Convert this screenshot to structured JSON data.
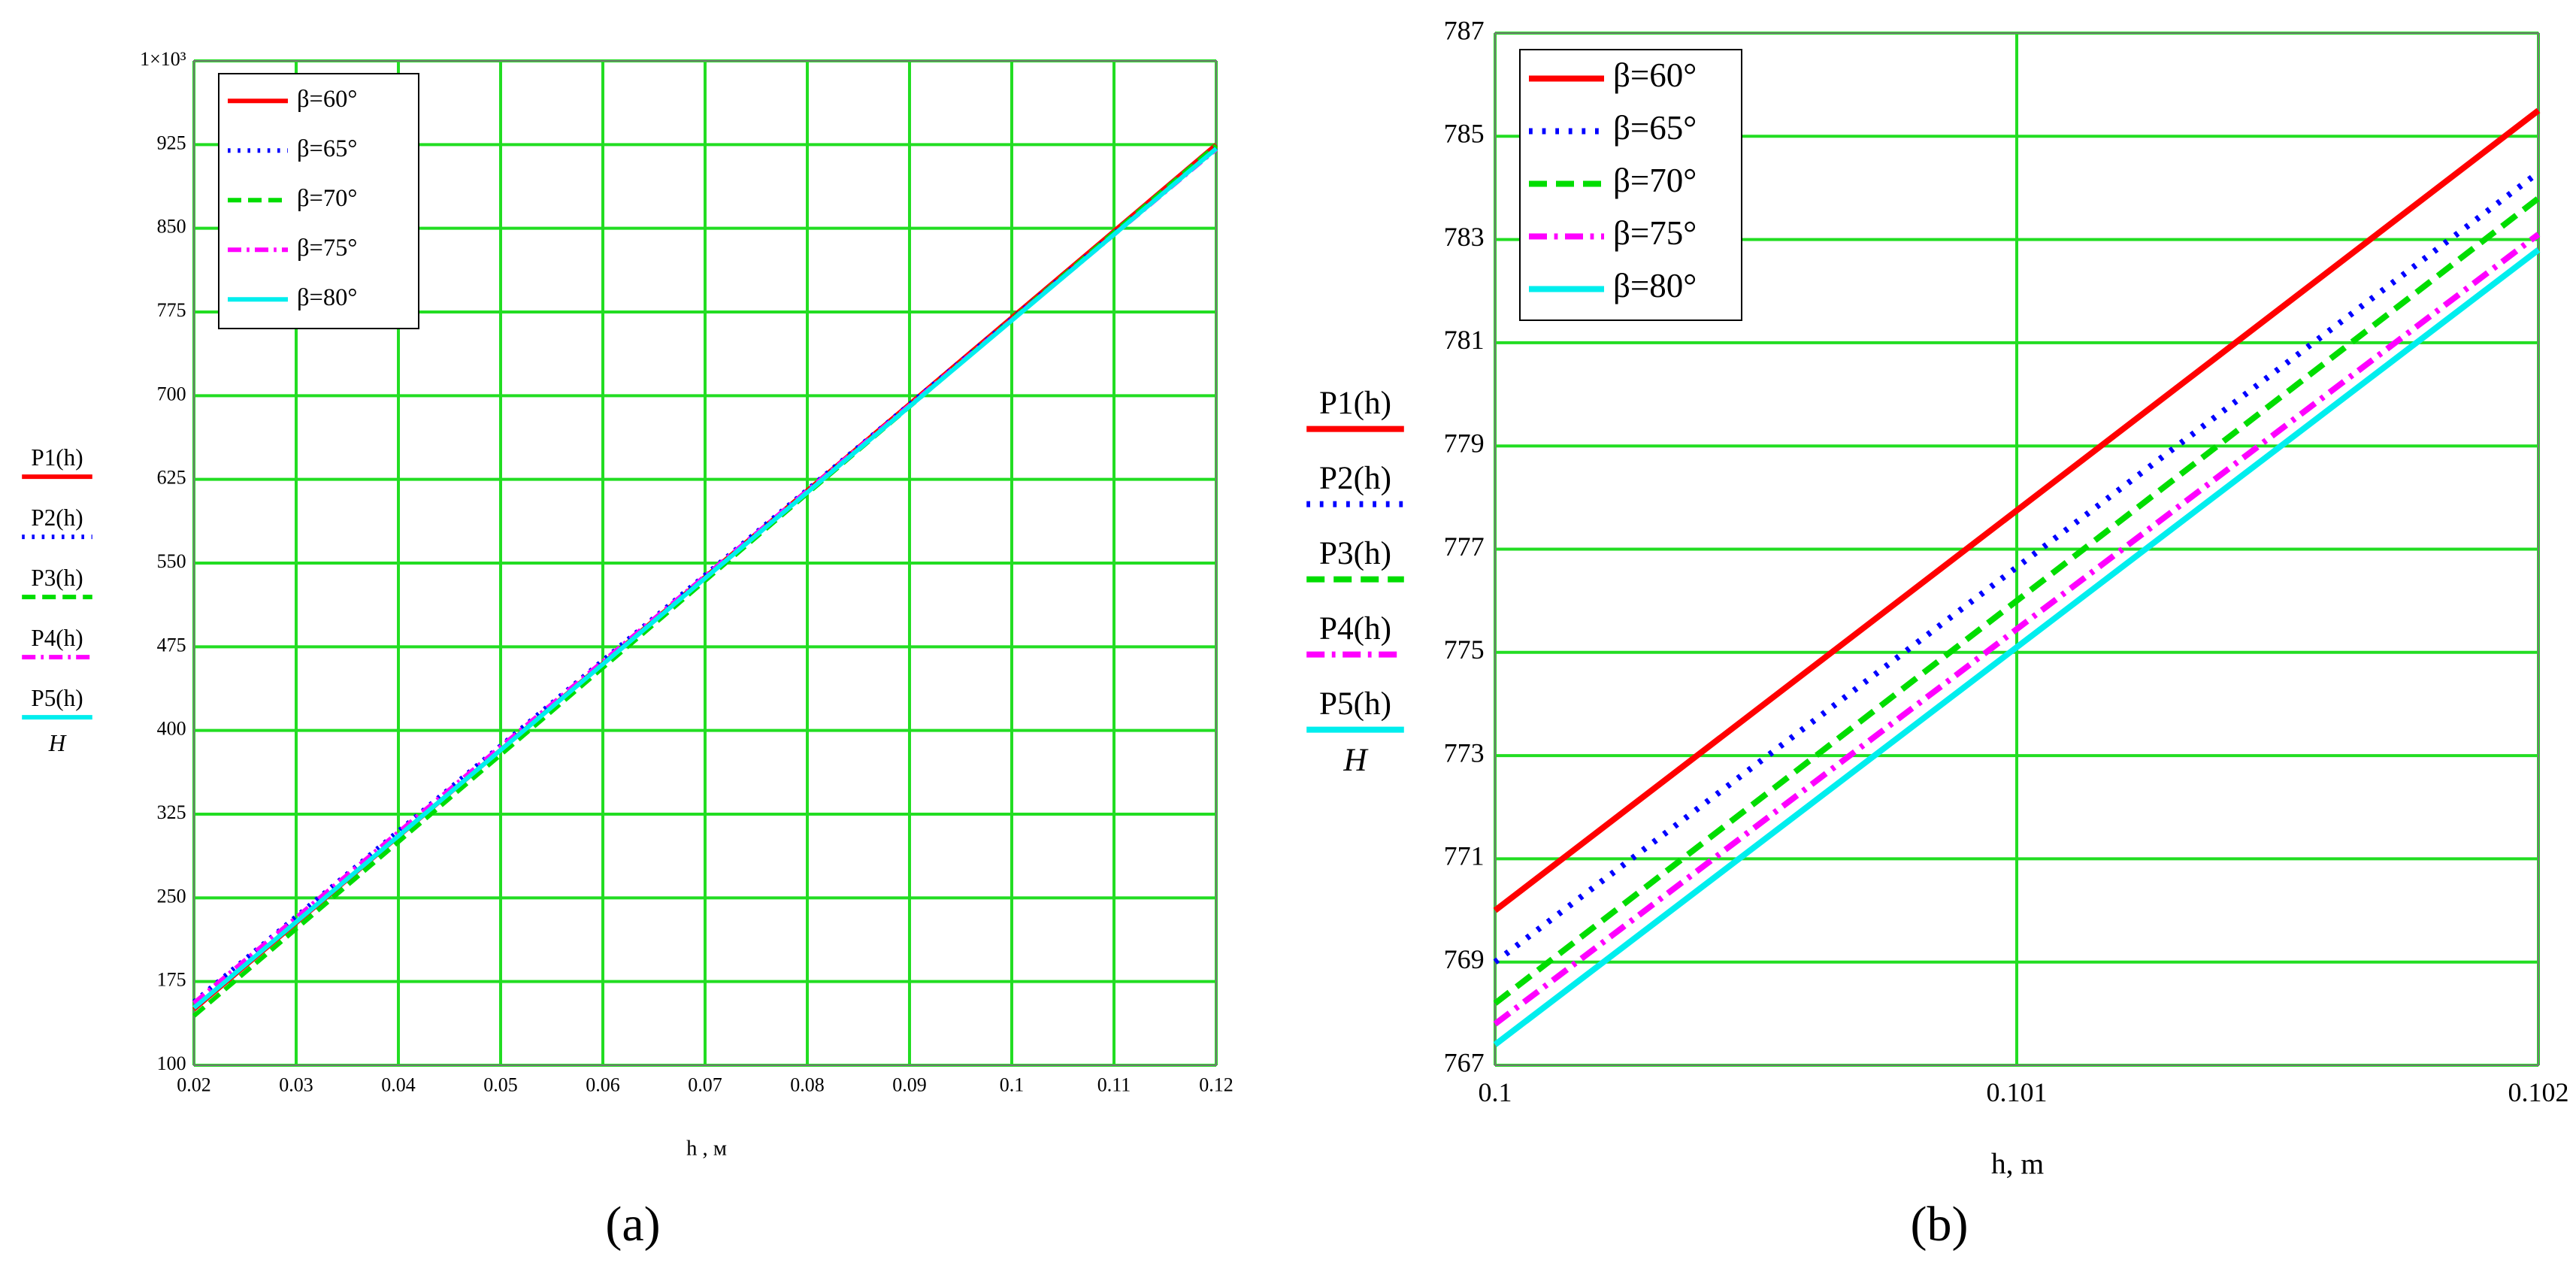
{
  "chart_data": [
    {
      "type": "line",
      "caption": "(a)",
      "xlabel": "h , м",
      "ylabel": "H",
      "xlim": [
        0.02,
        0.12
      ],
      "xticks": [
        0.02,
        0.03,
        0.04,
        0.05,
        0.06,
        0.07,
        0.08,
        0.09,
        0.1,
        0.11,
        0.12
      ],
      "ylim": [
        100,
        1000
      ],
      "yticks": [
        100,
        175,
        250,
        325,
        400,
        475,
        550,
        625,
        700,
        775,
        850,
        925,
        {
          "value": 1000,
          "label": "1×10³"
        }
      ],
      "grid": true,
      "grid_color": "#22dd22",
      "legend": "upper left",
      "x": [
        0.02,
        0.12
      ],
      "series": [
        {
          "name": "β=60°",
          "trace": "P1(h)",
          "color": "#ff0000",
          "style": "solid",
          "values": [
            150,
            925
          ]
        },
        {
          "name": "β=65°",
          "trace": "P2(h)",
          "color": "#0000ff",
          "style": "dotted",
          "values": [
            157,
            922
          ]
        },
        {
          "name": "β=70°",
          "trace": "P3(h)",
          "color": "#00dd00",
          "style": "dashed",
          "values": [
            144.2,
            924.2
          ]
        },
        {
          "name": "β=75°",
          "trace": "P4(h)",
          "color": "#ff00ff",
          "style": "dashdot",
          "values": [
            155.8,
            920.8
          ]
        },
        {
          "name": "β=80°",
          "trace": "P5(h)",
          "color": "#00eeee",
          "style": "solid",
          "values": [
            151.4,
            921.4
          ]
        }
      ]
    },
    {
      "type": "line",
      "caption": "(b)",
      "xlabel": "h, m",
      "ylabel": "H",
      "xlim": [
        0.1,
        0.102
      ],
      "xticks": [
        0.1,
        0.101,
        0.102
      ],
      "ylim": [
        767,
        787
      ],
      "yticks": [
        767,
        769,
        771,
        773,
        775,
        777,
        779,
        781,
        783,
        785,
        787
      ],
      "grid": true,
      "grid_color": "#22dd22",
      "legend": "upper left",
      "x": [
        0.1,
        0.102
      ],
      "series": [
        {
          "name": "β=60°",
          "trace": "P1(h)",
          "color": "#ff0000",
          "style": "solid",
          "values": [
            770.0,
            785.5
          ]
        },
        {
          "name": "β=65°",
          "trace": "P2(h)",
          "color": "#0000ff",
          "style": "dotted",
          "values": [
            769.0,
            784.3
          ]
        },
        {
          "name": "β=70°",
          "trace": "P3(h)",
          "color": "#00dd00",
          "style": "dashed",
          "values": [
            768.2,
            783.8
          ]
        },
        {
          "name": "β=75°",
          "trace": "P4(h)",
          "color": "#ff00ff",
          "style": "dashdot",
          "values": [
            767.8,
            783.1
          ]
        },
        {
          "name": "β=80°",
          "trace": "P5(h)",
          "color": "#00eeee",
          "style": "solid",
          "values": [
            767.4,
            782.8
          ]
        }
      ]
    }
  ]
}
